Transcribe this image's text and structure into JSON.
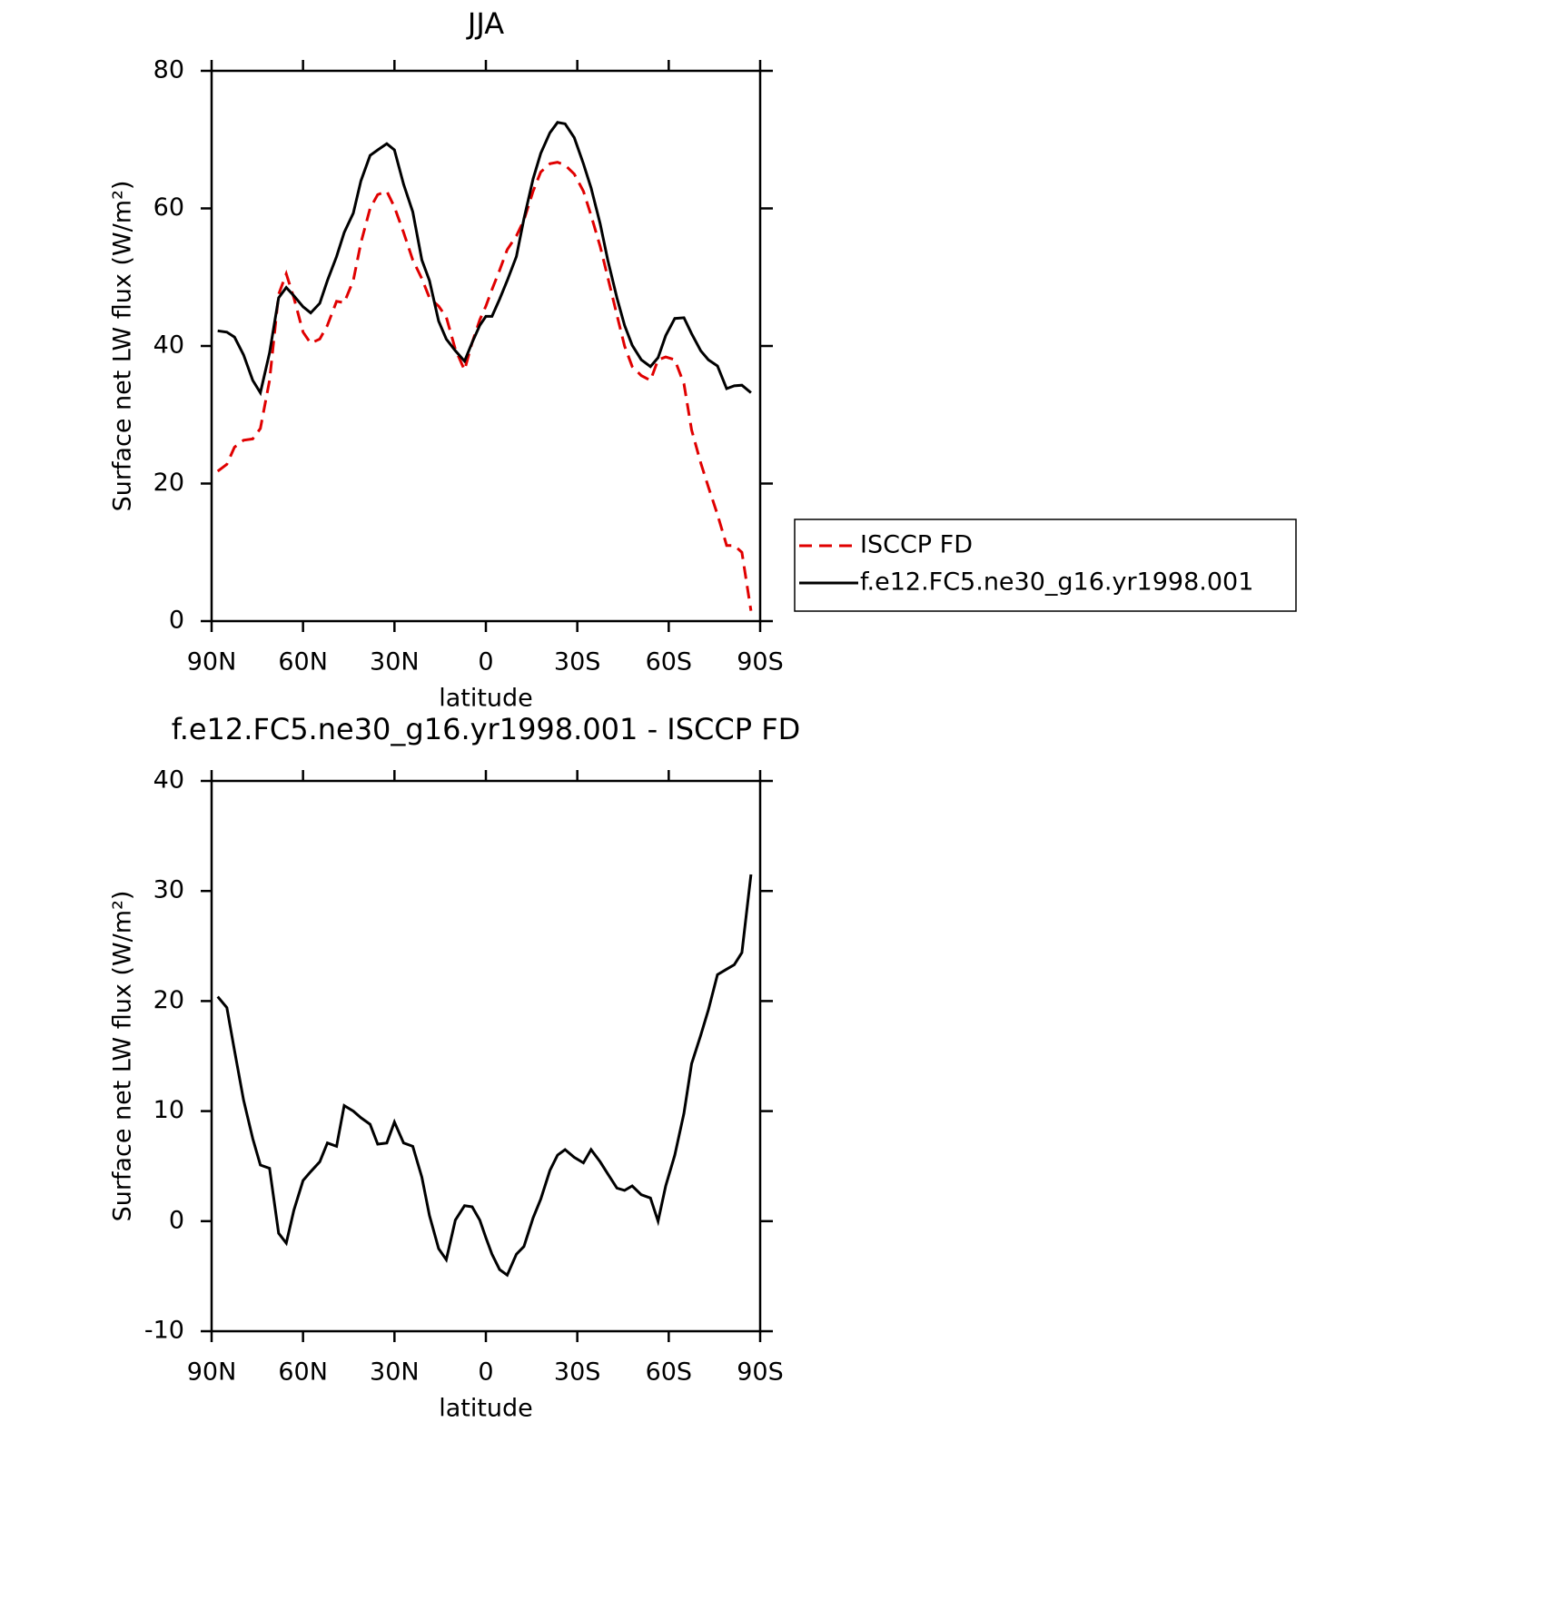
{
  "chart_data": [
    {
      "type": "line",
      "title": "JJA",
      "x_label": "latitude",
      "y_label": "Surface net LW flux (W/m²)",
      "x": [
        88,
        85,
        82.5,
        79.5,
        76.5,
        74,
        71,
        68,
        65.5,
        63,
        60,
        57.5,
        54.5,
        52,
        49,
        46.5,
        43.5,
        41,
        38,
        35.5,
        32.5,
        30,
        27,
        24,
        21,
        18.5,
        15.5,
        13,
        10,
        7,
        4.5,
        2,
        0,
        -2,
        -4.5,
        -7,
        -10,
        -12.5,
        -15.5,
        -18,
        -21,
        -23.5,
        -26,
        -29,
        -32,
        -34.5,
        -37.5,
        -40,
        -43,
        -45.5,
        -48,
        -51,
        -54,
        -56.5,
        -59,
        -62,
        -65,
        -67.5,
        -70.5,
        -73,
        -76,
        -79,
        -81.5,
        -84,
        -87
      ],
      "series": [
        {
          "name": "ISCCP FD",
          "color": "#e00000",
          "dash": true,
          "values": [
            21.8,
            22.8,
            25.3,
            26.3,
            26.5,
            28,
            35,
            47.5,
            50.5,
            47,
            42,
            40.4,
            41,
            43,
            46.5,
            46.3,
            49.5,
            55,
            60,
            62,
            62.5,
            60.2,
            56.5,
            52.5,
            49.8,
            47,
            45.8,
            44.2,
            39.5,
            36.5,
            40.5,
            43.8,
            45.8,
            48.2,
            51,
            54,
            56,
            58.3,
            62.5,
            65.3,
            66.5,
            66.7,
            66.3,
            65,
            62.5,
            59,
            54.5,
            50,
            44.5,
            40,
            37,
            35.7,
            35,
            38,
            38.4,
            38,
            34.5,
            27.8,
            23,
            19.5,
            15.5,
            11,
            11,
            10,
            1.5
          ]
        },
        {
          "name": "f.e12.FC5.ne30_g16.yr1998.001",
          "color": "#000000",
          "dash": false,
          "values": [
            42.2,
            42,
            41.3,
            38.7,
            35,
            33.2,
            39,
            47,
            48.5,
            47.3,
            45.7,
            44.8,
            46.2,
            49.5,
            53,
            56.5,
            59.3,
            64,
            67.7,
            68.5,
            69.4,
            68.5,
            63.5,
            59.5,
            52.5,
            49.5,
            43.6,
            41,
            39.3,
            37.8,
            40.5,
            43,
            44.3,
            44.3,
            46.8,
            49.5,
            53,
            58.5,
            64.3,
            68,
            71,
            72.5,
            72.3,
            70.3,
            66.5,
            63,
            57.8,
            52.5,
            47,
            43,
            40.1,
            38,
            37,
            38.3,
            41.5,
            44,
            44.1,
            41.8,
            39.3,
            38,
            37.1,
            33.8,
            34.2,
            34.3,
            33.2
          ]
        }
      ],
      "xlim": [
        90,
        -90
      ],
      "xticks": [
        {
          "value": 90,
          "label": "90N"
        },
        {
          "value": 60,
          "label": "60N"
        },
        {
          "value": 30,
          "label": "30N"
        },
        0,
        {
          "value": -30,
          "label": "30S"
        },
        {
          "value": -60,
          "label": "60S"
        },
        {
          "value": -90,
          "label": "90S"
        }
      ],
      "ylim": [
        0,
        80
      ],
      "yticks": [
        0,
        20,
        40,
        60,
        80
      ],
      "legend": "outside-right"
    },
    {
      "type": "line",
      "title": "f.e12.FC5.ne30_g16.yr1998.001 - ISCCP FD",
      "x_label": "latitude",
      "y_label": "Surface net LW flux (W/m²)",
      "x": [
        88,
        85,
        82.5,
        79.5,
        76.5,
        74,
        71,
        68,
        65.5,
        63,
        60,
        57.5,
        54.5,
        52,
        49,
        46.5,
        43.5,
        41,
        38,
        35.5,
        32.5,
        30,
        27,
        24,
        21,
        18.5,
        15.5,
        13,
        10,
        7,
        4.5,
        2,
        0,
        -2,
        -4.5,
        -7,
        -10,
        -12.5,
        -15.5,
        -18,
        -21,
        -23.5,
        -26,
        -29,
        -32,
        -34.5,
        -37.5,
        -40,
        -43,
        -45.5,
        -48,
        -51,
        -54,
        -56.5,
        -59,
        -62,
        -65,
        -67.5,
        -70.5,
        -73,
        -76,
        -79,
        -81.5,
        -84,
        -87
      ],
      "series": [
        {
          "name": "f.e12.FC5.ne30_g16.yr1998.001 - ISCCP FD",
          "color": "#000000",
          "dash": false,
          "values": [
            20.4,
            19.4,
            15.5,
            11,
            7.5,
            5.1,
            4.8,
            -1.1,
            -2,
            1,
            3.7,
            4.5,
            5.4,
            7.1,
            6.8,
            10.5,
            10,
            9.4,
            8.8,
            7,
            7.1,
            9,
            7.1,
            6.8,
            4,
            0.5,
            -2.5,
            -3.5,
            0.1,
            1.4,
            1.3,
            0.1,
            -1.5,
            -3,
            -4.4,
            -4.9,
            -3,
            -2.3,
            0.3,
            2,
            4.6,
            6,
            6.5,
            5.8,
            5.3,
            6.5,
            5.4,
            4.3,
            3,
            2.8,
            3.2,
            2.4,
            2.1,
            0,
            3.2,
            6,
            9.8,
            14.3,
            16.9,
            19.2,
            22.4,
            22.9,
            23.3,
            24.4,
            31.5
          ]
        }
      ],
      "xlim": [
        90,
        -90
      ],
      "xticks": [
        {
          "value": 90,
          "label": "90N"
        },
        {
          "value": 60,
          "label": "60N"
        },
        {
          "value": 30,
          "label": "30N"
        },
        0,
        {
          "value": -30,
          "label": "30S"
        },
        {
          "value": -60,
          "label": "60S"
        },
        {
          "value": -90,
          "label": "90S"
        }
      ],
      "ylim": [
        -10,
        40
      ],
      "yticks": [
        -10,
        0,
        10,
        20,
        30,
        40
      ],
      "legend": "none"
    }
  ]
}
